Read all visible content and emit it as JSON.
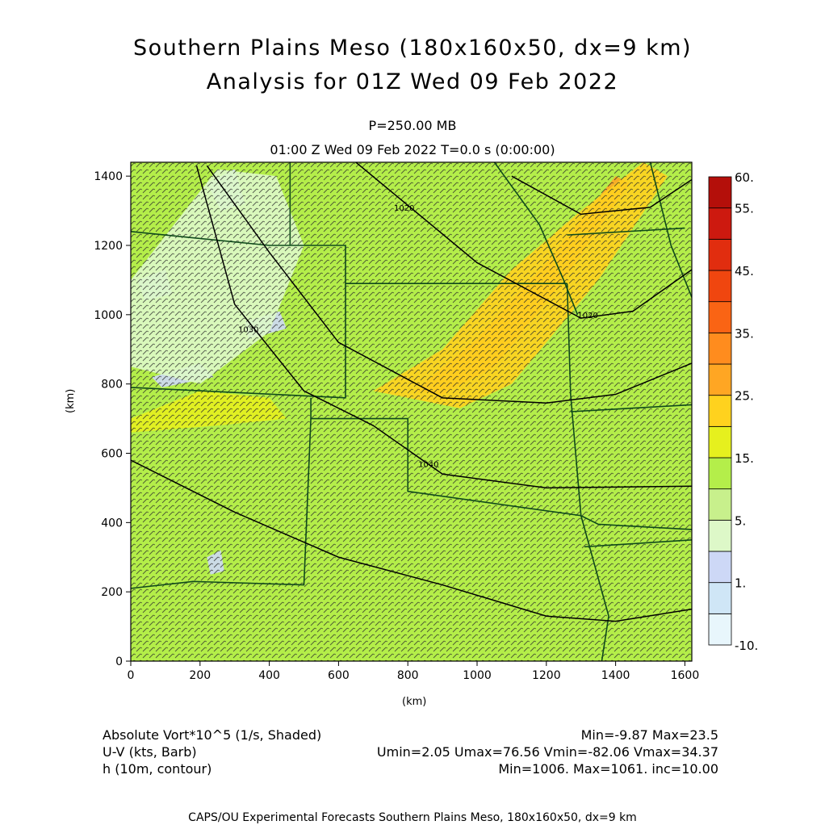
{
  "title_line1": "Southern Plains Meso (180x160x50, dx=9 km)",
  "title_line2": "Analysis for 01Z Wed 09 Feb 2022",
  "level": "P=250.00 MB",
  "valid_time": "01:00 Z Wed 09 Feb 2022    T=0.0 s (0:00:00)",
  "footer": {
    "field1_name": "Absolute Vort*10^5 (1/s, Shaded)",
    "field1_stats": "Min=-9.87 Max=23.5",
    "field2_name": "U-V (kts, Barb)",
    "field2_stats": "Umin=2.05 Umax=76.56 Vmin=-82.06 Vmax=34.37",
    "field3_name": "h (10m, contour)",
    "field3_stats": "Min=1006. Max=1061. inc=10.00",
    "credit": "CAPS/OU Experimental Forecasts  Southern Plains Meso, 180x160x50, dx=9 km"
  },
  "chart_data": {
    "type": "heatmap",
    "xlabel": "(km)",
    "ylabel": "(km)",
    "xlim": [
      0,
      1620
    ],
    "ylim": [
      0,
      1440
    ],
    "xticks": [
      0,
      200,
      400,
      600,
      800,
      1000,
      1200,
      1400,
      1600
    ],
    "yticks": [
      0,
      200,
      400,
      600,
      800,
      1000,
      1200,
      1400
    ],
    "colorbar": {
      "bands": [
        "#e8f6fc",
        "#cfe6f6",
        "#cdd8f6",
        "#ddf8c8",
        "#c8f08c",
        "#b4ee4a",
        "#e6f01e",
        "#ffd21e",
        "#ffa623",
        "#ff8c1e",
        "#fa6414",
        "#f0460f",
        "#e12d0f",
        "#cd190f",
        "#b40f0a"
      ],
      "labels": [
        "-10.",
        "1.",
        "5.",
        "15.",
        "25.",
        "35.",
        "45.",
        "55.",
        "60."
      ],
      "label_band_index": [
        0,
        2,
        4,
        6,
        8,
        10,
        12,
        14,
        15
      ]
    },
    "contour_field": "h (10m)",
    "contour_labels": [
      {
        "text": "1020",
        "x": 760,
        "y": 1300
      },
      {
        "text": "1020",
        "x": 1290,
        "y": 990
      },
      {
        "text": "1030",
        "x": 310,
        "y": 950
      },
      {
        "text": "1040",
        "x": 830,
        "y": 560
      }
    ],
    "contours": [
      [
        [
          0,
          580
        ],
        [
          300,
          430
        ],
        [
          600,
          300
        ],
        [
          900,
          220
        ],
        [
          1200,
          130
        ],
        [
          1400,
          115
        ],
        [
          1620,
          150
        ]
      ],
      [
        [
          220,
          1430
        ],
        [
          400,
          1180
        ],
        [
          600,
          920
        ],
        [
          900,
          760
        ],
        [
          1200,
          745
        ],
        [
          1400,
          770
        ],
        [
          1620,
          860
        ]
      ],
      [
        [
          190,
          1430
        ],
        [
          300,
          1030
        ],
        [
          500,
          780
        ],
        [
          700,
          680
        ],
        [
          900,
          540
        ],
        [
          1200,
          500
        ],
        [
          1620,
          505
        ]
      ],
      [
        [
          650,
          1440
        ],
        [
          1000,
          1150
        ],
        [
          1300,
          990
        ],
        [
          1450,
          1010
        ],
        [
          1620,
          1130
        ]
      ],
      [
        [
          1100,
          1400
        ],
        [
          1300,
          1290
        ],
        [
          1500,
          1310
        ],
        [
          1620,
          1390
        ]
      ]
    ],
    "shading_regions": [
      {
        "value_band": 8,
        "polygon": [
          [
            820,
            780
          ],
          [
            1000,
            930
          ],
          [
            1200,
            1150
          ],
          [
            1400,
            1400
          ],
          [
            1440,
            1380
          ],
          [
            1250,
            1100
          ],
          [
            1050,
            850
          ],
          [
            900,
            770
          ]
        ]
      },
      {
        "value_band": 7,
        "polygon": [
          [
            700,
            780
          ],
          [
            900,
            900
          ],
          [
            1100,
            1130
          ],
          [
            1300,
            1300
          ],
          [
            1480,
            1440
          ],
          [
            1550,
            1400
          ],
          [
            1350,
            1100
          ],
          [
            1100,
            800
          ],
          [
            950,
            730
          ]
        ]
      },
      {
        "value_band": 2,
        "polygon": [
          [
            220,
            1380
          ],
          [
            300,
            1420
          ],
          [
            330,
            1320
          ],
          [
            260,
            1300
          ]
        ]
      },
      {
        "value_band": 2,
        "polygon": [
          [
            20,
            1100
          ],
          [
            100,
            1130
          ],
          [
            120,
            1060
          ],
          [
            40,
            1040
          ]
        ]
      },
      {
        "value_band": 2,
        "polygon": [
          [
            60,
            820
          ],
          [
            200,
            860
          ],
          [
            240,
            820
          ],
          [
            90,
            790
          ]
        ]
      },
      {
        "value_band": 2,
        "polygon": [
          [
            330,
            980
          ],
          [
            430,
            1010
          ],
          [
            450,
            960
          ],
          [
            340,
            930
          ]
        ]
      },
      {
        "value_band": 2,
        "polygon": [
          [
            220,
            300
          ],
          [
            260,
            320
          ],
          [
            270,
            260
          ],
          [
            230,
            250
          ]
        ]
      },
      {
        "value_band": 3,
        "polygon": [
          [
            0,
            1100
          ],
          [
            250,
            1420
          ],
          [
            420,
            1400
          ],
          [
            500,
            1200
          ],
          [
            400,
            950
          ],
          [
            200,
            800
          ],
          [
            0,
            850
          ]
        ]
      },
      {
        "value_band": 6,
        "polygon": [
          [
            0,
            700
          ],
          [
            200,
            780
          ],
          [
            400,
            760
          ],
          [
            450,
            700
          ],
          [
            250,
            680
          ],
          [
            0,
            660
          ]
        ]
      }
    ],
    "boundaries": [
      [
        [
          0,
          1240
        ],
        [
          400,
          1200
        ],
        [
          620,
          1200
        ],
        [
          620,
          760
        ],
        [
          0,
          790
        ]
      ],
      [
        [
          460,
          1440
        ],
        [
          460,
          1200
        ]
      ],
      [
        [
          620,
          1090
        ],
        [
          1260,
          1090
        ]
      ],
      [
        [
          520,
          760
        ],
        [
          520,
          700
        ],
        [
          800,
          700
        ],
        [
          800,
          490
        ],
        [
          1300,
          420
        ],
        [
          1350,
          395
        ],
        [
          1620,
          380
        ]
      ],
      [
        [
          520,
          700
        ],
        [
          500,
          220
        ],
        [
          180,
          230
        ],
        [
          0,
          210
        ]
      ],
      [
        [
          1260,
          1090
        ],
        [
          1270,
          770
        ],
        [
          1300,
          420
        ]
      ],
      [
        [
          1270,
          720
        ],
        [
          1620,
          740
        ]
      ],
      [
        [
          1310,
          330
        ],
        [
          1620,
          350
        ]
      ],
      [
        [
          1300,
          420
        ],
        [
          1380,
          130
        ],
        [
          1360,
          0
        ]
      ],
      [
        [
          1050,
          1440
        ],
        [
          1180,
          1260
        ],
        [
          1250,
          1100
        ],
        [
          1290,
          1000
        ]
      ],
      [
        [
          1500,
          1440
        ],
        [
          1560,
          1200
        ],
        [
          1620,
          1050
        ]
      ],
      [
        [
          1260,
          1230
        ],
        [
          1600,
          1250
        ]
      ]
    ]
  }
}
